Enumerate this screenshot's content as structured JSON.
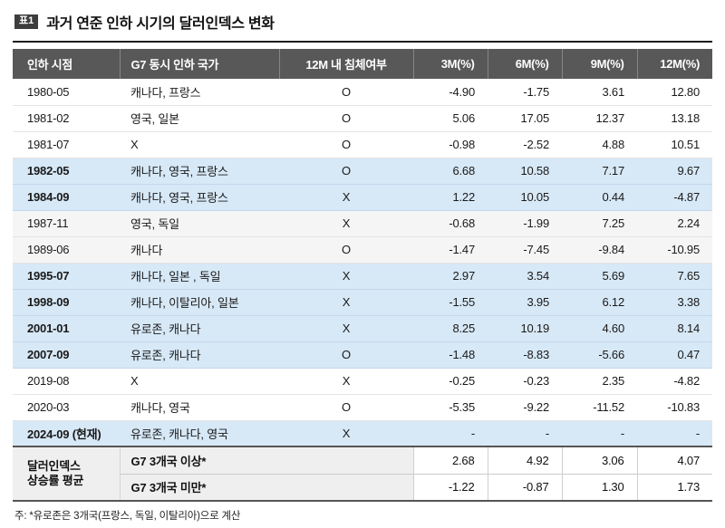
{
  "title": {
    "badge": "표1",
    "text": "과거 연준 인하 시기의 달러인덱스 변화"
  },
  "chart_data": {
    "type": "table",
    "title": "과거 연준 인하 시기의 달러인덱스 변화",
    "columns": [
      "인하 시점",
      "G7 동시 인하 국가",
      "12M 내 침체여부",
      "3M(%)",
      "6M(%)",
      "9M(%)",
      "12M(%)"
    ],
    "rows": [
      {
        "date": "1980-05",
        "countries": "캐나다, 프랑스",
        "recession": "O",
        "m3": "-4.90",
        "m6": "-1.75",
        "m9": "3.61",
        "m12": "12.80",
        "tone": "white"
      },
      {
        "date": "1981-02",
        "countries": "영국, 일본",
        "recession": "O",
        "m3": "5.06",
        "m6": "17.05",
        "m9": "12.37",
        "m12": "13.18",
        "tone": "white"
      },
      {
        "date": "1981-07",
        "countries": "X",
        "recession": "O",
        "m3": "-0.98",
        "m6": "-2.52",
        "m9": "4.88",
        "m12": "10.51",
        "tone": "white"
      },
      {
        "date": "1982-05",
        "countries": "캐나다, 영국, 프랑스",
        "recession": "O",
        "m3": "6.68",
        "m6": "10.58",
        "m9": "7.17",
        "m12": "9.67",
        "tone": "blue"
      },
      {
        "date": "1984-09",
        "countries": "캐나다, 영국, 프랑스",
        "recession": "X",
        "m3": "1.22",
        "m6": "10.05",
        "m9": "0.44",
        "m12": "-4.87",
        "tone": "blue"
      },
      {
        "date": "1987-11",
        "countries": "영국, 독일",
        "recession": "X",
        "m3": "-0.68",
        "m6": "-1.99",
        "m9": "7.25",
        "m12": "2.24",
        "tone": "gray"
      },
      {
        "date": "1989-06",
        "countries": "캐나다",
        "recession": "O",
        "m3": "-1.47",
        "m6": "-7.45",
        "m9": "-9.84",
        "m12": "-10.95",
        "tone": "gray"
      },
      {
        "date": "1995-07",
        "countries": "캐나다, 일본 , 독일",
        "recession": "X",
        "m3": "2.97",
        "m6": "3.54",
        "m9": "5.69",
        "m12": "7.65",
        "tone": "blue"
      },
      {
        "date": "1998-09",
        "countries": "캐나다, 이탈리아, 일본",
        "recession": "X",
        "m3": "-1.55",
        "m6": "3.95",
        "m9": "6.12",
        "m12": "3.38",
        "tone": "blue"
      },
      {
        "date": "2001-01",
        "countries": "유로존, 캐나다",
        "recession": "X",
        "m3": "8.25",
        "m6": "10.19",
        "m9": "4.60",
        "m12": "8.14",
        "tone": "blue"
      },
      {
        "date": "2007-09",
        "countries": "유로존, 캐나다",
        "recession": "O",
        "m3": "-1.48",
        "m6": "-8.83",
        "m9": "-5.66",
        "m12": "0.47",
        "tone": "blue"
      },
      {
        "date": "2019-08",
        "countries": "X",
        "recession": "X",
        "m3": "-0.25",
        "m6": "-0.23",
        "m9": "2.35",
        "m12": "-4.82",
        "tone": "white"
      },
      {
        "date": "2020-03",
        "countries": "캐나다, 영국",
        "recession": "O",
        "m3": "-5.35",
        "m6": "-9.22",
        "m9": "-11.52",
        "m12": "-10.83",
        "tone": "white"
      },
      {
        "date": "2024-09 (현재)",
        "countries": "유로존, 캐나다, 영국",
        "recession": "X",
        "m3": "-",
        "m6": "-",
        "m9": "-",
        "m12": "-",
        "tone": "blue"
      }
    ],
    "summary": {
      "label": "달러인덱스 상승률 평균",
      "label_lines": [
        "달러인덱스",
        "상승률 평균"
      ],
      "rows": [
        {
          "group": "G7 3개국 이상*",
          "m3": "2.68",
          "m6": "4.92",
          "m9": "3.06",
          "m12": "4.07"
        },
        {
          "group": "G7 3개국 미만*",
          "m3": "-1.22",
          "m6": "-0.87",
          "m9": "1.30",
          "m12": "1.73"
        }
      ]
    },
    "note": "주: *유로존은 3개국(프랑스, 독일, 이탈리아)으로 계산"
  }
}
